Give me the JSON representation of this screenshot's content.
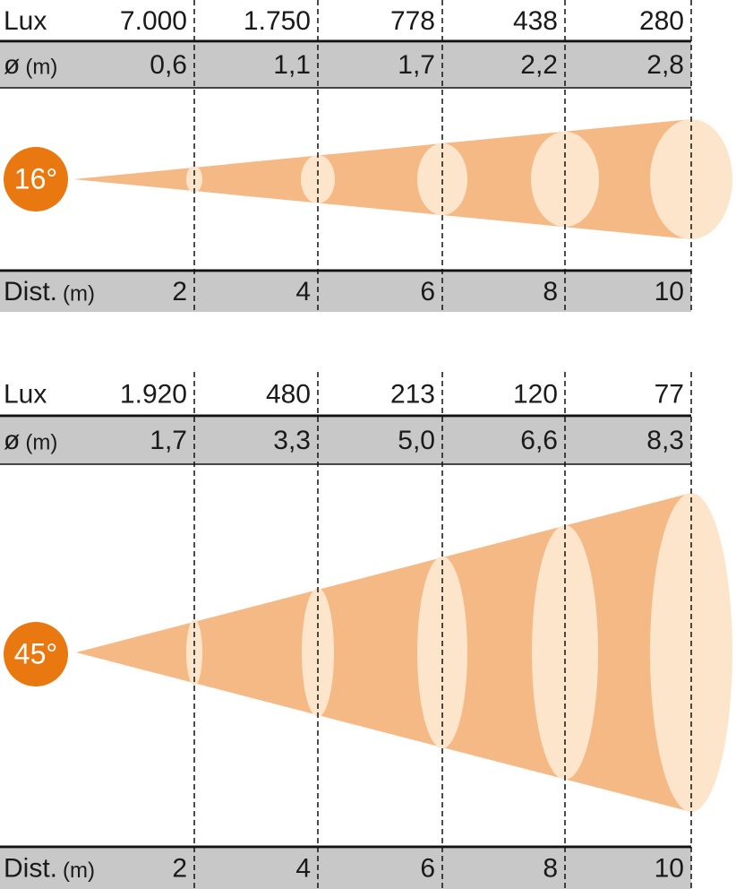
{
  "panels": [
    {
      "beam_angle": "16°",
      "lux": {
        "label": "Lux",
        "values": [
          "7.000",
          "1.750",
          "778",
          "438",
          "280"
        ]
      },
      "diameter": {
        "label": "ø",
        "unit": "(m)",
        "values": [
          "0,6",
          "1,1",
          "1,7",
          "2,2",
          "2,8"
        ]
      },
      "distance": {
        "label": "Dist.",
        "unit": "(m)",
        "values": [
          "2",
          "4",
          "6",
          "8",
          "10"
        ]
      }
    },
    {
      "beam_angle": "45°",
      "lux": {
        "label": "Lux",
        "values": [
          "1.920",
          "480",
          "213",
          "120",
          "77"
        ]
      },
      "diameter": {
        "label": "ø",
        "unit": "(m)",
        "values": [
          "1,7",
          "3,3",
          "5,0",
          "6,6",
          "8,3"
        ]
      },
      "distance": {
        "label": "Dist.",
        "unit": "(m)",
        "values": [
          "2",
          "4",
          "6",
          "8",
          "10"
        ]
      }
    }
  ]
}
